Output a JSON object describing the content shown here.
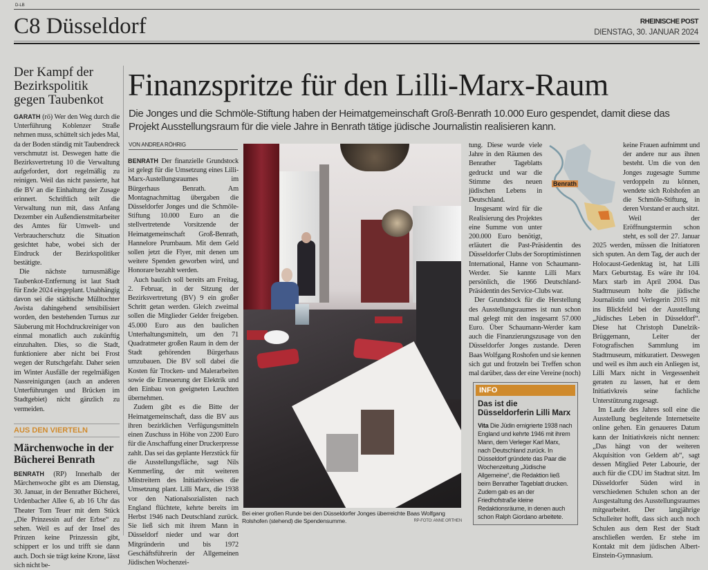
{
  "header": {
    "edition_code": "D-LB",
    "section": "C8 Düsseldorf",
    "newspaper": "RHEINISCHE POST",
    "date": "DIENSTAG, 30. JANUAR 2024"
  },
  "sidebar": {
    "story1": {
      "headline": "Der Kampf der Bezirkspolitik gegen Taubenkot",
      "dateline": "GARATH",
      "paragraphs": [
        "(rö) Wer den Weg durch die Unterführung Koblenzer Straße nehmen muss, schüttelt sich jedes Mal, da der Boden ständig mit Taubendreck verschmutzt ist. Deswegen hatte die Bezirksvertretung 10 die Verwaltung aufgefordert, dort regelmäßig zu reinigen. Weil das nicht passierte, hat die BV an die Einhaltung der Zusage erinnert. Schriftlich teilt die Verwaltung nun mit, dass Anfang Dezember ein Außendienstmitarbeiter des Amtes für Umwelt- und Verbraucherschutz die Situation gesichtet habe, wobei sich der Eindruck der Bezirkspolitiker bestätigte.",
        "Die nächste turnusmäßige Taubenkot-Entfernung ist laut Stadt für Ende 2024 eingeplant. Unabhängig davon sei die städtische Mülltochter Awista dahingehend sensibilisiert worden, den bestehenden Turnus zur Säuberung mit Hochdruckreiniger von einmal monatlich auch zukünftig einzuhalten. Dies, so die Stadt, funktioniere aber nicht bei Frost wegen der Rutschgefahr. Daher seien im Winter Ausfälle der regelmäßigen Nassreinigungen (auch an anderen Unterführungen und Brücken im Stadtgebiet) nicht gänzlich zu vermeiden."
      ]
    },
    "story2": {
      "kicker": "AUS DEN VIERTELN",
      "headline": "Märchenwoche in der Bücherei Benrath",
      "dateline": "BENRATH",
      "paragraphs": [
        "(RP) Innerhalb der Märchenwoche gibt es am Dienstag, 30. Januar, in der Benrather Bücherei, Urdenbacher Allee 6, ab 16 Uhr das Theater Tom Teuer mit dem Stück „Die Prinzessin auf der Erbse“ zu sehen. Weil es auf der Insel des Prinzen keine Prinzessin gibt, schippert er los und trifft sie dann auch. Doch sie trägt keine Krone, lässt sich nicht be-"
      ]
    }
  },
  "article": {
    "headline": "Finanzspritze für den Lilli-Marx-Raum",
    "deck": "Die Jonges und die Schmöle-Stiftung haben der Heimatgemeinschaft Groß-Benrath 10.000 Euro gespendet, damit diese das Projekt Ausstellungsraum für die viele Jahre in Benrath tätige jüdische Journalistin realisieren kann.",
    "byline": "VON ANDREA RÖHRIG",
    "dateline": "BENRATH",
    "column1": [
      "Der finanzielle Grundstock ist gelegt für die Umsetzung eines Lilli-Marx-Austellungsraumes im Bürgerhaus Benrath. Am Montagnachmittag übergaben die Düsseldorfer Jonges und die Schmöle-Stiftung 10.000 Euro an die stellvertretende Vorsitzende der Heimatgemeinschaft Groß-Benrath, Hannelore Prumbaum. Mit dem Geld sollen jetzt die Flyer, mit denen um weitere Spenden geworben wird, und Honorare bezahlt werden.",
      "Auch baulich soll bereits am Freitag, 2. Februar, in der Sitzung der Bezirksvertretung (BV) 9 ein großer Schritt getan werden. Gleich zweimal sollen die Mitglieder Gelder freigeben. 45.000 Euro aus den baulichen Unterhaltungsmitteln, um den 71 Quadratmeter großen Raum in dem der Stadt gehörenden Bürgerhaus umzubauen. Die BV soll dabei die Kosten für Trocken- und Malerarbeiten sowie die Erneuerung der Elektrik und den Einbau von geeigneten Leuchten übernehmen.",
      "Zudem gibt es die Bitte der Heimatgemeinschaft, dass die BV aus ihren bezirklichen Verfügungsmitteln einen Zuschuss in Höhe von 2200 Euro für die Anschaffung einer Druckerpresse zahlt. Das sei das geplante Herzstück für die Ausstellungsfläche, sagt Nils Kemmerling, der mit weiteren Mitstreitern des Initiativkreises die Umsetzung plant. Lilli Marx, die 1938 vor den Nationalsozialisten nach England flüchtete, kehrte bereits im Herbst 1946 nach Deutschland zurück. Sie ließ sich mit ihrem Mann in Düsseldorf nieder und war dort Mitgründerin und bis 1972 Geschäftsführerin der Allgemeinen Jüdischen Wochenzei-"
    ],
    "column3": [
      "tung. Diese wurde viele Jahre in den Räumen des Benrather Tageblatts gedruckt und war die Stimme des neuen jüdischen Lebens in Deutschland.",
      "Insgesamt wird für die Realisierung des Projektes eine Summe von unter 200.000 Euro benötigt, erläutert die Past-Präsidentin des Düsseldorfer Clubs der Soroptimistinnen International, Hanne von Schaumann-Werder. Sie kannte Lilli Marx persönlich, die 1966 Deutschland-Präsidentin des Service-Clubs war.",
      "Der Grundstock für die Herstellung des Ausstellungsraumes ist nun schon mal gelegt mit den insgesamt 57.000 Euro. Über Schaumann-Werder kam auch die Finanzierungszusage von den Düsseldorfer Jonges zustande. Deren Baas Wolfgang Roshofen und sie kennen sich gut und frotzeln bei Treffen schon mal darüber, dass der eine Vereine (noch)"
    ],
    "column4": [
      "keine Frauen aufnimmt und der andere nur aus ihnen besteht. Um die von den Jonges zugesagte Summe verdoppeln zu können, wendete sich Rolshofen an die Schmöle-Stiftung, in deren Vorstand er auch sitzt.",
      "Weil der Eröffnungstermin schon steht, es soll der 27. Januar 2025 werden, müssen die Initiatoren sich sputen. An dem Tag, der auch der Holocaust-Gedenktag ist, hat Lilli Marx Geburtstag. Es wäre ihr 104. Marx starb im April 2004. Das Stadtmuseum holte die jüdische Journalistin und Verlegerin 2015 mit ins Blickfeld bei der Ausstellung „Jüdisches Leben in Düsseldorf“. Diese hat Christoph Danelzik-Brüggemann, Leiter der Fotografischen Sammlung im Stadtmuseum, mitkuratiert. Deswegen und weil es ihm auch ein Anliegen ist, Lilli Marx nicht in Vergessenheit geraten zu lassen, hat er dem Initiativkreis seine fachliche Unterstützung zugesagt.",
      "Im Laufe des Jahres soll eine die Ausstellung begleitende Internetseite online gehen. Ein genaueres Datum kann der Initiativkreis nicht nennen: „Das hängt von der weiteren Akquisition von Geldern ab“, sagt dessen Mitglied Peter Labourie, der auch für die CDU im Stadtrat sitzt. Im Düsseldorfer Süden wird in verschiedenen Schulen schon an der Ausgestaltung des Ausstellungsraumes mitgearbeitet. Der langjährige Schulleiter hofft, dass sich auch noch Schulen aus dem Rest der Stadt anschließen werden. Er stehe im Kontakt mit dem jüdischen Albert-Einstein-Gymnasium."
    ],
    "photo": {
      "caption": "Bei einer großen Runde bei den Düsseldorfer Jonges überreichte Baas Wolfgang Rolshofen (stehend) die Spendensumme.",
      "credit": "RP-FOTO: ANNE ORTHEN"
    },
    "map": {
      "label": "Benrath",
      "highlight_color": "#d9762e"
    },
    "info_box": {
      "kicker": "INFO",
      "headline": "Das ist die Düsseldorferin Lilli Marx",
      "lead": "Vita",
      "text": "Die Jüdin emigrierte 1938 nach England und kehrte 1946 mit ihrem Mann, dem Verleger Karl Marx, nach Deutschland zurück. In Düsseldorf gründete das Paar die Wochenzeitung „Jüdische Allgemeine“, die Redaktion ließ beim Benrather Tageblatt drucken. Zudem gab es an der Friedhofstraße kleine Redaktionsräume, in denen auch schon Ralph Giordano arbeitete."
    }
  },
  "colors": {
    "paper": "#d6d6d3",
    "accent_orange": "#d18a2c",
    "curtain_red": "#7a1e24"
  }
}
